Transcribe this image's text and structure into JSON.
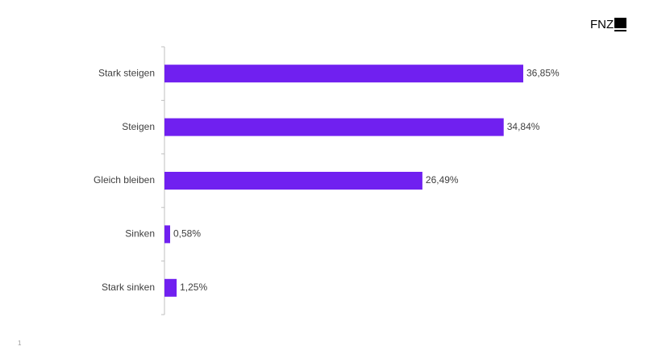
{
  "logo": "FNZ",
  "page_number": "1",
  "chart_data": {
    "type": "bar",
    "orientation": "horizontal",
    "categories": [
      "Stark steigen",
      "Steigen",
      "Gleich bleiben",
      "Sinken",
      "Stark sinken"
    ],
    "values": [
      36.85,
      34.84,
      26.49,
      0.58,
      1.25
    ],
    "value_labels": [
      "36,85%",
      "34,84%",
      "26,49%",
      "0,58%",
      "1,25%"
    ],
    "color": "#7020f0"
  }
}
